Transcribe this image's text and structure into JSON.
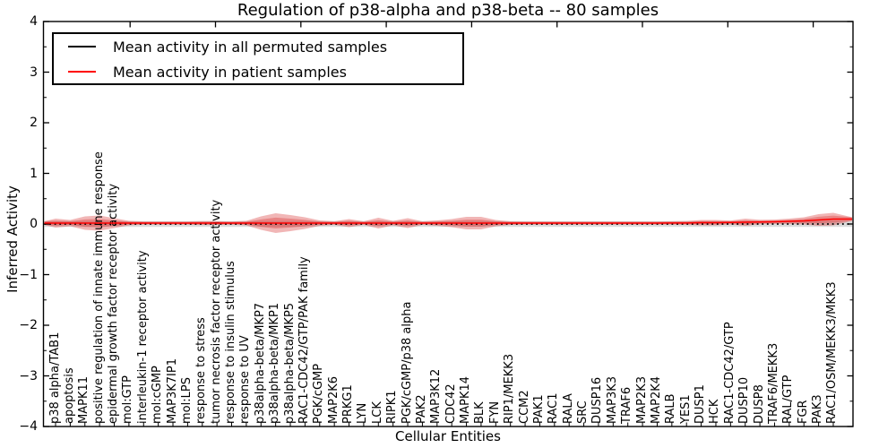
{
  "chart_data": {
    "type": "line",
    "title": "Regulation of p38-alpha and p38-beta -- 80 samples",
    "xlabel": "Cellular Entities",
    "ylabel": "Inferred Activity",
    "ylim": [
      -4,
      4
    ],
    "ytick_values": [
      4,
      3,
      2,
      1,
      0,
      -1,
      -2,
      -3,
      -4
    ],
    "ytick_labels": [
      "4",
      "3",
      "2",
      "1",
      "0",
      "−1",
      "−2",
      "−3",
      "−4"
    ],
    "grid": false,
    "legend_position": "upper left",
    "categories": [
      "p38 alpha/TAB1",
      "apoptosis",
      "MAPK11",
      "positive regulation of innate immune response",
      "epidermal growth factor receptor activity",
      "mol:GTP",
      "interleukin-1 receptor activity",
      "mol:cGMP",
      "MAP3K7IP1",
      "mol:LPS",
      "response to stress",
      "tumor necrosis factor receptor activity",
      "response to insulin stimulus",
      "response to UV",
      "p38alpha-beta/MKP7",
      "p38alpha-beta/MKP1",
      "p38alpha-beta/MKP5",
      "RAC1-CDC42/GTP/PAK family",
      "PGK/cGMP",
      "MAP2K6",
      "PRKG1",
      "LYN",
      "LCK",
      "RIPK1",
      "PGK/cGMP/p38 alpha",
      "PAK2",
      "MAP3K12",
      "CDC42",
      "MAPK14",
      "BLK",
      "FYN",
      "RIP1/MEKK3",
      "CCM2",
      "PAK1",
      "RAC1",
      "RALA",
      "SRC",
      "DUSP16",
      "MAP3K3",
      "TRAF6",
      "MAP2K3",
      "MAP2K4",
      "RALB",
      "YES1",
      "DUSP1",
      "HCK",
      "RAC1-CDC42/GTP",
      "DUSP10",
      "DUSP8",
      "TRAF6/MEKK3",
      "RAL/GTP",
      "FGR",
      "PAK3",
      "RAC1/OSM/MEKK3/MKK3"
    ],
    "series": [
      {
        "name": "Mean activity in all permuted samples",
        "color": "#000000",
        "style": "dotted",
        "band_half_width": 0.057,
        "band_color": "#888888",
        "values": [
          0,
          0,
          0,
          0,
          0,
          0,
          0,
          0,
          0,
          0,
          0,
          0,
          0,
          0,
          0,
          0,
          0,
          0,
          0,
          0,
          0,
          0,
          0,
          0,
          0,
          0,
          0,
          0,
          0,
          0,
          0,
          0,
          0,
          0,
          0,
          0,
          0,
          0,
          0,
          0,
          0,
          0,
          0,
          0,
          0,
          0,
          0,
          0,
          0,
          0,
          0,
          0,
          0,
          0
        ]
      },
      {
        "name": "Mean activity in patient samples",
        "color": "#ff0000",
        "style": "solid",
        "band_color": "#d62728",
        "values": [
          0.018,
          0.018,
          0.018,
          0.018,
          0.018,
          0.018,
          0.018,
          0.018,
          0.018,
          0.018,
          0.018,
          0.018,
          0.018,
          0.018,
          0.018,
          0.018,
          0.018,
          0.018,
          0.018,
          0.018,
          0.018,
          0.018,
          0.018,
          0.018,
          0.018,
          0.018,
          0.018,
          0.018,
          0.018,
          0.018,
          0.018,
          0.018,
          0.018,
          0.018,
          0.018,
          0.018,
          0.018,
          0.018,
          0.018,
          0.018,
          0.018,
          0.018,
          0.021,
          0.021,
          0.027,
          0.027,
          0.03,
          0.035,
          0.039,
          0.044,
          0.053,
          0.062,
          0.08,
          0.097
        ],
        "band_half_width_per_category": [
          0.088,
          0.062,
          0.133,
          0.15,
          0.097,
          0.044,
          0.032,
          0.032,
          0.032,
          0.032,
          0.039,
          0.039,
          0.032,
          0.044,
          0.133,
          0.195,
          0.159,
          0.115,
          0.053,
          0.035,
          0.08,
          0.035,
          0.106,
          0.044,
          0.097,
          0.035,
          0.053,
          0.08,
          0.124,
          0.124,
          0.062,
          0.035,
          0.032,
          0.032,
          0.032,
          0.032,
          0.032,
          0.032,
          0.032,
          0.032,
          0.032,
          0.032,
          0.035,
          0.039,
          0.053,
          0.053,
          0.039,
          0.071,
          0.044,
          0.044,
          0.053,
          0.071,
          0.115,
          0.124
        ]
      }
    ]
  }
}
